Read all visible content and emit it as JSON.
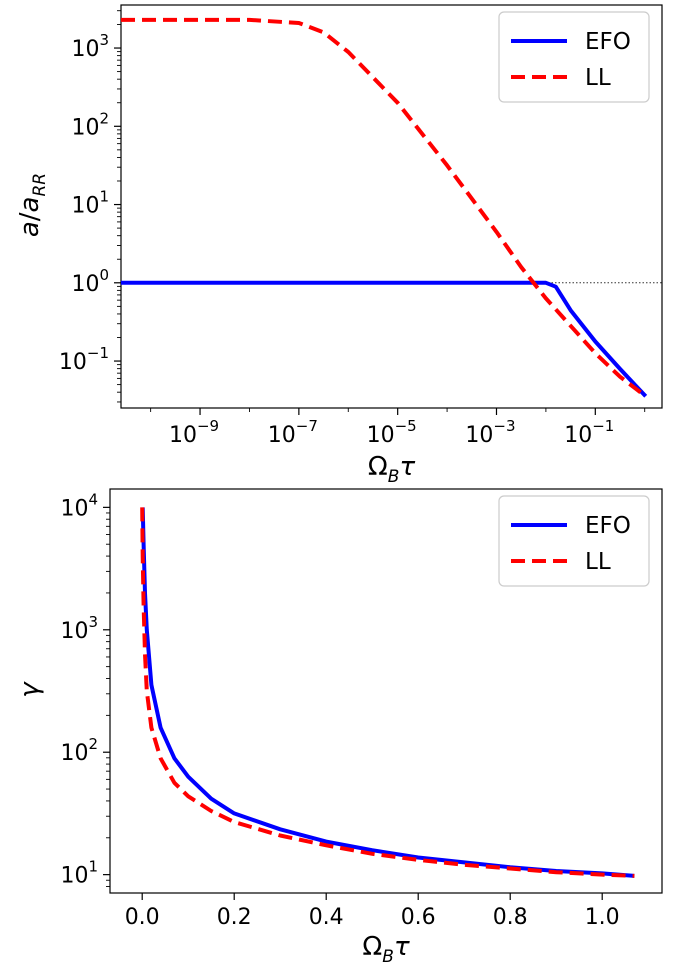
{
  "chart_data": [
    {
      "type": "line",
      "xlabel": "Ω_B τ",
      "ylabel": "a/a_RR",
      "xscale": "log",
      "yscale": "log",
      "xlim_log10": [
        -10.6,
        0.35
      ],
      "ylim_log10": [
        -1.6,
        3.55
      ],
      "x_ticks": [
        {
          "exp": "−9",
          "v": -9
        },
        {
          "exp": "−7",
          "v": -7
        },
        {
          "exp": "−5",
          "v": -5
        },
        {
          "exp": "−3",
          "v": -3
        },
        {
          "exp": "−1",
          "v": -1
        }
      ],
      "y_ticks": [
        {
          "exp": "−1",
          "v": -1
        },
        {
          "exp": "0",
          "v": 0
        },
        {
          "exp": "1",
          "v": 1
        },
        {
          "exp": "2",
          "v": 2
        },
        {
          "exp": "3",
          "v": 3
        }
      ],
      "reference_line": {
        "y_log10": 0,
        "style": "dotted"
      },
      "legend": {
        "placement": "top-right",
        "entries": [
          "EFO",
          "LL"
        ]
      },
      "series": [
        {
          "name": "EFO",
          "color": "#0000ff",
          "dash": "solid",
          "points_log10": [
            [
              -10.6,
              0
            ],
            [
              -3,
              0
            ],
            [
              -2,
              0
            ],
            [
              -1.8,
              -0.05
            ],
            [
              -1.5,
              -0.35
            ],
            [
              -1,
              -0.75
            ],
            [
              -0.5,
              -1.1
            ],
            [
              0.02,
              -1.45
            ]
          ]
        },
        {
          "name": "LL",
          "color": "#ff0000",
          "dash": "dashed",
          "points_log10": [
            [
              -10.6,
              3.36
            ],
            [
              -8,
              3.36
            ],
            [
              -7,
              3.32
            ],
            [
              -6.5,
              3.2
            ],
            [
              -6,
              2.95
            ],
            [
              -5,
              2.3
            ],
            [
              -4,
              1.5
            ],
            [
              -3,
              0.65
            ],
            [
              -2.5,
              0.2
            ],
            [
              -2,
              -0.2
            ],
            [
              -1.5,
              -0.55
            ],
            [
              -1,
              -0.9
            ],
            [
              -0.5,
              -1.2
            ],
            [
              0.02,
              -1.45
            ]
          ]
        }
      ]
    },
    {
      "type": "line",
      "xlabel": "Ω_B τ",
      "ylabel": "γ",
      "xscale": "linear",
      "yscale": "log",
      "xlim": [
        -0.07,
        1.13
      ],
      "ylim_log10": [
        0.85,
        4.15
      ],
      "x_ticks": [
        {
          "label": "0.0",
          "v": 0
        },
        {
          "label": "0.2",
          "v": 0.2
        },
        {
          "label": "0.4",
          "v": 0.4
        },
        {
          "label": "0.6",
          "v": 0.6
        },
        {
          "label": "0.8",
          "v": 0.8
        },
        {
          "label": "1.0",
          "v": 1.0
        }
      ],
      "y_ticks": [
        {
          "exp": "1",
          "v": 1
        },
        {
          "exp": "2",
          "v": 2
        },
        {
          "exp": "3",
          "v": 3
        },
        {
          "exp": "4",
          "v": 4
        }
      ],
      "legend": {
        "placement": "top-right",
        "entries": [
          "EFO",
          "LL"
        ]
      },
      "series": [
        {
          "name": "EFO",
          "color": "#0000ff",
          "dash": "solid",
          "points": [
            [
              0.001,
              4.0
            ],
            [
              0.003,
              3.7
            ],
            [
              0.006,
              3.3
            ],
            [
              0.01,
              3.0
            ],
            [
              0.02,
              2.55
            ],
            [
              0.04,
              2.2
            ],
            [
              0.07,
              1.95
            ],
            [
              0.1,
              1.8
            ],
            [
              0.15,
              1.62
            ],
            [
              0.2,
              1.5
            ],
            [
              0.3,
              1.37
            ],
            [
              0.4,
              1.27
            ],
            [
              0.5,
              1.2
            ],
            [
              0.6,
              1.14
            ],
            [
              0.7,
              1.1
            ],
            [
              0.8,
              1.06
            ],
            [
              0.9,
              1.03
            ],
            [
              1.0,
              1.01
            ],
            [
              1.07,
              0.99
            ]
          ]
        },
        {
          "name": "LL",
          "color": "#ff0000",
          "dash": "dashed",
          "points": [
            [
              0.0,
              4.0
            ],
            [
              0.001,
              3.6
            ],
            [
              0.003,
              3.2
            ],
            [
              0.006,
              2.8
            ],
            [
              0.01,
              2.5
            ],
            [
              0.02,
              2.2
            ],
            [
              0.04,
              1.95
            ],
            [
              0.07,
              1.75
            ],
            [
              0.1,
              1.64
            ],
            [
              0.15,
              1.52
            ],
            [
              0.2,
              1.43
            ],
            [
              0.3,
              1.32
            ],
            [
              0.4,
              1.24
            ],
            [
              0.5,
              1.17
            ],
            [
              0.6,
              1.12
            ],
            [
              0.7,
              1.08
            ],
            [
              0.8,
              1.05
            ],
            [
              0.9,
              1.02
            ],
            [
              1.0,
              1.0
            ],
            [
              1.07,
              0.99
            ]
          ]
        }
      ]
    }
  ]
}
